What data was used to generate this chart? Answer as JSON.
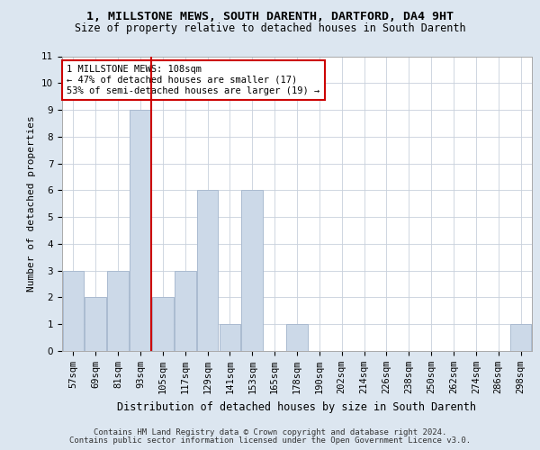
{
  "title1": "1, MILLSTONE MEWS, SOUTH DARENTH, DARTFORD, DA4 9HT",
  "title2": "Size of property relative to detached houses in South Darenth",
  "xlabel": "Distribution of detached houses by size in South Darenth",
  "ylabel": "Number of detached properties",
  "categories": [
    "57sqm",
    "69sqm",
    "81sqm",
    "93sqm",
    "105sqm",
    "117sqm",
    "129sqm",
    "141sqm",
    "153sqm",
    "165sqm",
    "178sqm",
    "190sqm",
    "202sqm",
    "214sqm",
    "226sqm",
    "238sqm",
    "250sqm",
    "262sqm",
    "274sqm",
    "286sqm",
    "298sqm"
  ],
  "values": [
    3,
    2,
    3,
    9,
    2,
    3,
    6,
    1,
    6,
    0,
    1,
    0,
    0,
    0,
    0,
    0,
    0,
    0,
    0,
    0,
    1
  ],
  "bar_color": "#ccd9e8",
  "bar_edgecolor": "#aabbd0",
  "reference_line_x": 3.5,
  "reference_line_color": "#cc0000",
  "annotation_text": "1 MILLSTONE MEWS: 108sqm\n← 47% of detached houses are smaller (17)\n53% of semi-detached houses are larger (19) →",
  "annotation_box_edgecolor": "#cc0000",
  "ylim": [
    0,
    11
  ],
  "yticks": [
    0,
    1,
    2,
    3,
    4,
    5,
    6,
    7,
    8,
    9,
    10,
    11
  ],
  "bg_color": "#dce6f0",
  "plot_bg_color": "#ffffff",
  "grid_color": "#c8d0dc",
  "footer1": "Contains HM Land Registry data © Crown copyright and database right 2024.",
  "footer2": "Contains public sector information licensed under the Open Government Licence v3.0.",
  "title1_fontsize": 9.5,
  "title2_fontsize": 8.5,
  "xlabel_fontsize": 8.5,
  "ylabel_fontsize": 8,
  "tick_fontsize": 7.5,
  "annotation_fontsize": 7.5,
  "footer_fontsize": 6.5
}
